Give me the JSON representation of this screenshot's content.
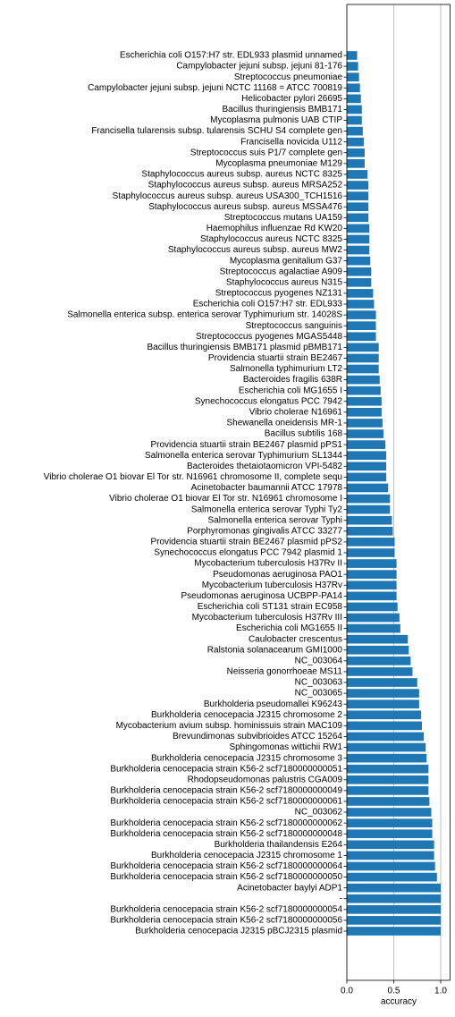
{
  "chart_data": {
    "type": "barh",
    "x_label": "accuracy",
    "color": "#1f77b4",
    "grid": true,
    "xlim": [
      0,
      1.1
    ],
    "xticks": [
      {
        "value": 0,
        "label": "0.0"
      },
      0.5,
      {
        "value": 1,
        "label": "1.0"
      }
    ],
    "categories": [
      "Escherichia coli O157:H7 str. EDL933 plasmid unnamed",
      "Campylobacter jejuni subsp. jejuni 81-176",
      "Streptococcus pneumoniae",
      "Campylobacter jejuni subsp. jejuni NCTC 11168 = ATCC 700819",
      "Helicobacter pylori 26695",
      "Bacillus thuringiensis BMB171",
      "Mycoplasma pulmonis UAB CTIP",
      "Francisella tularensis subsp. tularensis SCHU S4 complete gen",
      "Francisella novicida U112",
      "Streptococcus suis P1/7 complete gen",
      "Mycoplasma pneumoniae M129",
      "Staphylococcus aureus subsp. aureus NCTC 8325",
      "Staphylococcus aureus subsp. aureus MRSA252",
      "Staphylococcus aureus subsp. aureus USA300_TCH1516",
      "Staphylococcus aureus subsp. aureus MSSA476",
      "Streptococcus mutans UA159",
      "Haemophilus influenzae Rd KW20",
      "Staphylococcus aureus NCTC 8325",
      "Staphylococcus aureus subsp. aureus MW2",
      "Mycoplasma genitalium G37",
      "Streptococcus agalactiae A909",
      "Staphylococcus aureus N315",
      "Streptococcus pyogenes NZ131",
      "Escherichia coli O157:H7 str. EDL933",
      "Salmonella enterica subsp. enterica serovar Typhimurium str. 14028S",
      "Streptococcus sanguinis",
      "Streptococcus pyogenes MGAS5448",
      "Bacillus thuringiensis BMB171 plasmid pBMB171",
      "Providencia stuartii strain BE2467",
      "Salmonella typhimurium LT2",
      "Bacteroides fragilis 638R",
      "Escherichia coli MG1655 I",
      "Synechococcus elongatus PCC 7942",
      "Vibrio cholerae N16961",
      "Shewanella oneidensis MR-1",
      "Bacillus subtilis 168",
      "Providencia stuartii strain BE2467 plasmid pPS1",
      "Salmonella enterica serovar Typhimurium SL1344",
      "Bacteroides thetaiotaomicron VPI-5482",
      "Vibrio cholerae O1 biovar El Tor str. N16961 chromosome II, complete sequ",
      "Acinetobacter baumannii ATCC 17978",
      "Vibrio cholerae O1 biovar El Tor str. N16961 chromosome I",
      "Salmonella enterica serovar Typhi Ty2",
      "Salmonella enterica serovar Typhi",
      "Porphyromonas gingivalis ATCC 33277",
      "Providencia stuartii strain BE2467 plasmid pPS2",
      "Synechococcus elongatus PCC 7942 plasmid 1",
      "Mycobacterium tuberculosis H37Rv II",
      "Pseudomonas aeruginosa PAO1",
      "Mycobacterium tuberculosis H37Rv",
      "Pseudomonas aeruginosa UCBPP-PA14",
      "Escherichia coli ST131 strain EC958",
      "Mycobacterium tuberculosis H37Rv III",
      "Escherichia coli MG1655 II",
      "Caulobacter crescentus",
      "Ralstonia solanacearum GMI1000",
      "NC_003064",
      "Neisseria gonorrhoeae MS11",
      "NC_003063",
      "NC_003065",
      "Burkholderia pseudomallei K96243",
      "Burkholderia cenocepacia J2315 chromosome 2",
      "Mycobacterium avium subsp. hominissuis strain MAC109",
      "Brevundimonas subvibrioides ATCC 15264",
      "Sphingomonas wittichii RW1",
      "Burkholderia cenocepacia J2315 chromosome 3",
      "Burkholderia cenocepacia strain K56-2 scf7180000000051",
      "Rhodopseudomonas palustris CGA009",
      "Burkholderia cenocepacia strain K56-2 scf7180000000049",
      "Burkholderia cenocepacia strain K56-2 scf7180000000061",
      "NC_003062",
      "Burkholderia cenocepacia strain K56-2 scf7180000000062",
      "Burkholderia cenocepacia strain K56-2 scf7180000000048",
      "Burkholderia thailandensis E264",
      "Burkholderia cenocepacia J2315 chromosome 1",
      "Burkholderia cenocepacia strain K56-2 scf7180000000064",
      "Burkholderia cenocepacia strain K56-2 scf7180000000050",
      "Acinetobacter baylyi ADP1",
      "-",
      "Burkholderia cenocepacia strain K56-2 scf7180000000054",
      "Burkholderia cenocepacia strain K56-2 scf7180000000056",
      "Burkholderia cenocepacia J2315 pBCJ2315 plasmid"
    ],
    "values": [
      0.11,
      0.12,
      0.13,
      0.14,
      0.15,
      0.16,
      0.16,
      0.17,
      0.18,
      0.19,
      0.19,
      0.22,
      0.23,
      0.23,
      0.23,
      0.23,
      0.24,
      0.24,
      0.24,
      0.25,
      0.26,
      0.26,
      0.28,
      0.29,
      0.31,
      0.31,
      0.31,
      0.34,
      0.34,
      0.34,
      0.35,
      0.36,
      0.37,
      0.37,
      0.38,
      0.39,
      0.41,
      0.42,
      0.42,
      0.42,
      0.44,
      0.46,
      0.46,
      0.48,
      0.49,
      0.51,
      0.51,
      0.53,
      0.53,
      0.53,
      0.53,
      0.54,
      0.56,
      0.57,
      0.65,
      0.66,
      0.68,
      0.7,
      0.75,
      0.77,
      0.77,
      0.79,
      0.8,
      0.82,
      0.84,
      0.85,
      0.87,
      0.87,
      0.87,
      0.88,
      0.9,
      0.91,
      0.91,
      0.93,
      0.93,
      0.94,
      0.96,
      1.0,
      1.0,
      1.0,
      1.0,
      1.0
    ]
  }
}
